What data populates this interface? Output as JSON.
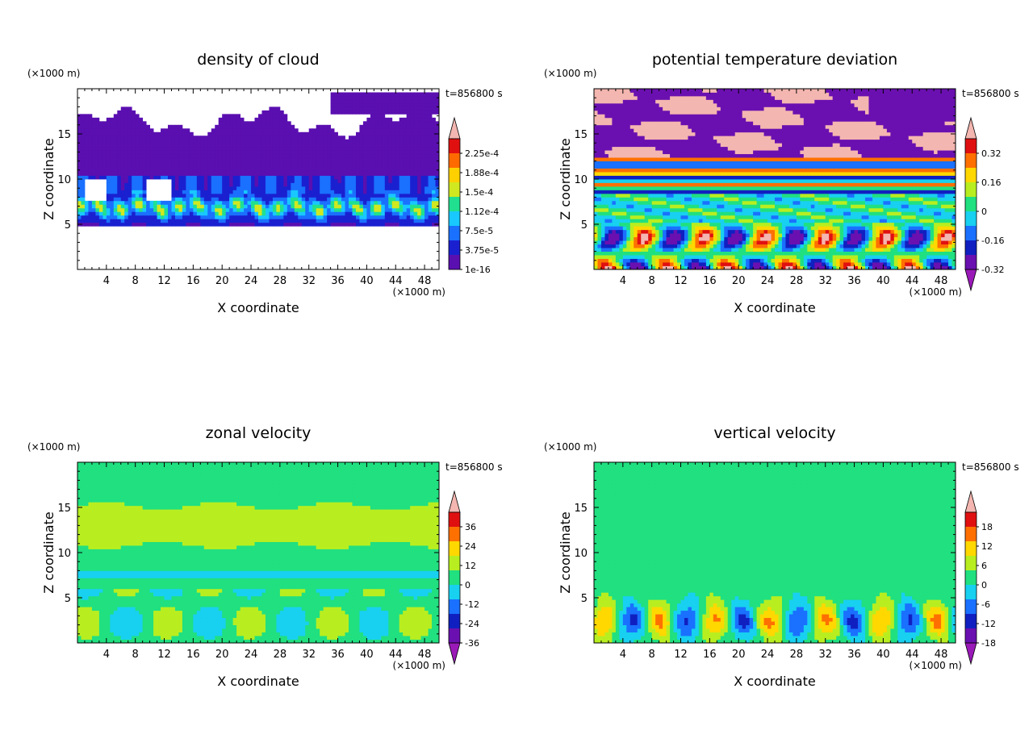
{
  "colors": {
    "axis": "#000000",
    "background": "#ffffff",
    "below_min_arrow": "#9a1ab8",
    "above_max_arrow": "#f4b6b0"
  },
  "chart_data": [
    {
      "type": "heatmap",
      "title": "density of cloud",
      "xlabel": "X coordinate",
      "ylabel": "Z coordinate",
      "x_unit": "(×1000 m)",
      "y_unit": "(×1000 m)",
      "time_label": "t=856800 s",
      "xlim": [
        0,
        50
      ],
      "ylim": [
        0,
        20
      ],
      "xticks": [
        4,
        8,
        12,
        16,
        20,
        24,
        28,
        32,
        36,
        40,
        44,
        48
      ],
      "yticks": [
        5,
        10,
        15
      ],
      "colorbar": {
        "labels": [
          "2.25e-4",
          "1.88e-4",
          "1.5e-4",
          "1.12e-4",
          "7.5e-5",
          "3.75e-5",
          "1e-16"
        ],
        "colors": [
          "#5a0fb0",
          "#1a20d0",
          "#1a70ff",
          "#18c8ff",
          "#20e090",
          "#d0e820",
          "#ffd000",
          "#ff6a00",
          "#e01010"
        ],
        "top_arrow": true,
        "bottom_arrow": false
      },
      "field": "cloud"
    },
    {
      "type": "heatmap",
      "title": "potential temperature deviation",
      "xlabel": "X coordinate",
      "ylabel": "Z coordinate",
      "x_unit": "(×1000 m)",
      "y_unit": "(×1000 m)",
      "time_label": "t=856800 s",
      "xlim": [
        0,
        50
      ],
      "ylim": [
        0,
        20
      ],
      "xticks": [
        4,
        8,
        12,
        16,
        20,
        24,
        28,
        32,
        36,
        40,
        44,
        48
      ],
      "yticks": [
        5,
        10,
        15
      ],
      "colorbar": {
        "labels": [
          "0.32",
          "0.16",
          "0",
          "-0.16",
          "-0.32"
        ],
        "colors": [
          "#6a10b0",
          "#1020c0",
          "#1a70ff",
          "#18d0f0",
          "#20e080",
          "#b8ee20",
          "#ffd800",
          "#ff7000",
          "#e01010"
        ],
        "top_arrow": true,
        "bottom_arrow": true
      },
      "field": "theta"
    },
    {
      "type": "heatmap",
      "title": "zonal velocity",
      "xlabel": "X coordinate",
      "ylabel": "Z coordinate",
      "x_unit": "(×1000 m)",
      "y_unit": "(×1000 m)",
      "time_label": "t=856800 s",
      "xlim": [
        0,
        50
      ],
      "ylim": [
        0,
        20
      ],
      "xticks": [
        4,
        8,
        12,
        16,
        20,
        24,
        28,
        32,
        36,
        40,
        44,
        48
      ],
      "yticks": [
        5,
        10,
        15
      ],
      "colorbar": {
        "labels": [
          "36",
          "24",
          "12",
          "0",
          "-12",
          "-24",
          "-36"
        ],
        "colors": [
          "#6a10b0",
          "#1020c0",
          "#1a70ff",
          "#18d0f0",
          "#20e080",
          "#b8ee20",
          "#ffd800",
          "#ff7000",
          "#e01010"
        ],
        "top_arrow": true,
        "bottom_arrow": true
      },
      "field": "u"
    },
    {
      "type": "heatmap",
      "title": "vertical velocity",
      "xlabel": "X coordinate",
      "ylabel": "Z coordinate",
      "x_unit": "(×1000 m)",
      "y_unit": "(×1000 m)",
      "time_label": "t=856800 s",
      "xlim": [
        0,
        50
      ],
      "ylim": [
        0,
        20
      ],
      "xticks": [
        4,
        8,
        12,
        16,
        20,
        24,
        28,
        32,
        36,
        40,
        44,
        48
      ],
      "yticks": [
        5,
        10,
        15
      ],
      "colorbar": {
        "labels": [
          "18",
          "12",
          "6",
          "0",
          "-6",
          "-12",
          "-18"
        ],
        "colors": [
          "#6a10b0",
          "#1020c0",
          "#1a70ff",
          "#18d0f0",
          "#20e080",
          "#b8ee20",
          "#ffd800",
          "#ff7000",
          "#e01010"
        ],
        "top_arrow": true,
        "bottom_arrow": true
      },
      "field": "w"
    }
  ]
}
